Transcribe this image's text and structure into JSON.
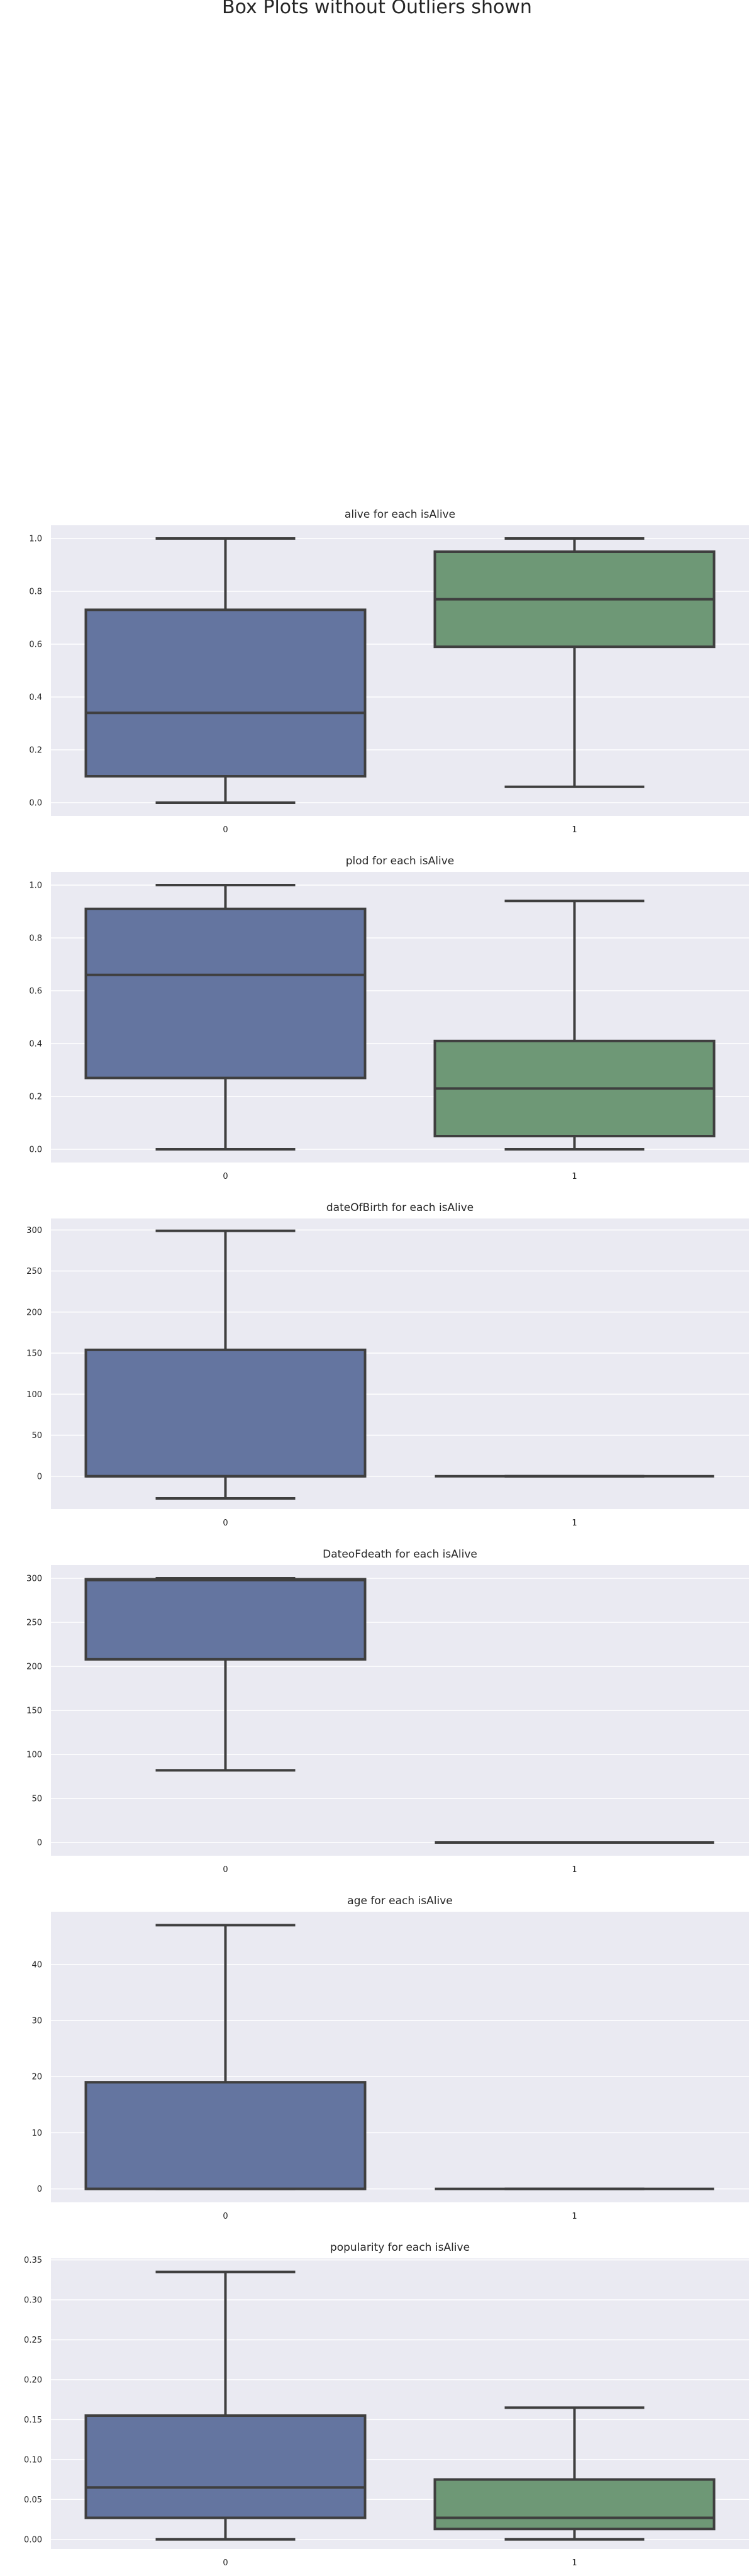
{
  "suptitle": "Box Plots without Outliers shown",
  "colors": {
    "group_0": "#6475a0",
    "group_1": "#6e9876",
    "line": "#3f3f3f",
    "plot_bg": "#eaeaf2",
    "grid": "#ffffff"
  },
  "chart_data": [
    {
      "type": "box",
      "title": "alive for each isAlive",
      "categories": [
        "0",
        "1"
      ],
      "ylim": [
        -0.05,
        1.05
      ],
      "yticks": [
        0.0,
        0.2,
        0.4,
        0.6,
        0.8,
        1.0
      ],
      "ytick_labels": [
        "0.0",
        "0.2",
        "0.4",
        "0.6",
        "0.8",
        "1.0"
      ],
      "boxes": [
        {
          "whisker_low": 0.0,
          "q1": 0.1,
          "median": 0.34,
          "q3": 0.73,
          "whisker_high": 1.0
        },
        {
          "whisker_low": 0.06,
          "q1": 0.59,
          "median": 0.77,
          "q3": 0.95,
          "whisker_high": 1.0
        }
      ]
    },
    {
      "type": "box",
      "title": "plod for each isAlive",
      "categories": [
        "0",
        "1"
      ],
      "ylim": [
        -0.05,
        1.05
      ],
      "yticks": [
        0.0,
        0.2,
        0.4,
        0.6,
        0.8,
        1.0
      ],
      "ytick_labels": [
        "0.0",
        "0.2",
        "0.4",
        "0.6",
        "0.8",
        "1.0"
      ],
      "boxes": [
        {
          "whisker_low": 0.0,
          "q1": 0.27,
          "median": 0.66,
          "q3": 0.91,
          "whisker_high": 1.0
        },
        {
          "whisker_low": 0.0,
          "q1": 0.05,
          "median": 0.23,
          "q3": 0.41,
          "whisker_high": 0.94
        }
      ]
    },
    {
      "type": "box",
      "title": "dateOfBirth for each isAlive",
      "categories": [
        "0",
        "1"
      ],
      "ylim": [
        -40,
        314
      ],
      "yticks": [
        0,
        50,
        100,
        150,
        200,
        250,
        300
      ],
      "ytick_labels": [
        "0",
        "50",
        "100",
        "150",
        "200",
        "250",
        "300"
      ],
      "boxes": [
        {
          "whisker_low": -27,
          "q1": 0,
          "median": 0,
          "q3": 154,
          "whisker_high": 299
        },
        {
          "whisker_low": 0,
          "q1": 0,
          "median": 0,
          "q3": 0,
          "whisker_high": 0
        }
      ]
    },
    {
      "type": "box",
      "title": "DateoFdeath for each isAlive",
      "categories": [
        "0",
        "1"
      ],
      "ylim": [
        -15,
        315
      ],
      "yticks": [
        0,
        50,
        100,
        150,
        200,
        250,
        300
      ],
      "ytick_labels": [
        "0",
        "50",
        "100",
        "150",
        "200",
        "250",
        "300"
      ],
      "boxes": [
        {
          "whisker_low": 82,
          "q1": 208,
          "median": 298,
          "q3": 299,
          "whisker_high": 300
        },
        {
          "whisker_low": 0,
          "q1": 0,
          "median": 0,
          "q3": 0,
          "whisker_high": 0
        }
      ]
    },
    {
      "type": "box",
      "title": "age for each isAlive",
      "categories": [
        "0",
        "1"
      ],
      "ylim": [
        -2.4,
        49.4
      ],
      "yticks": [
        0,
        10,
        20,
        30,
        40
      ],
      "ytick_labels": [
        "0",
        "10",
        "20",
        "30",
        "40"
      ],
      "boxes": [
        {
          "whisker_low": 0,
          "q1": 0,
          "median": 0,
          "q3": 19,
          "whisker_high": 47
        },
        {
          "whisker_low": 0,
          "q1": 0,
          "median": 0,
          "q3": 0,
          "whisker_high": 0
        }
      ]
    },
    {
      "type": "box",
      "title": "popularity for each isAlive",
      "categories": [
        "0",
        "1"
      ],
      "ylim": [
        -0.012,
        0.352
      ],
      "yticks": [
        0.0,
        0.05,
        0.1,
        0.15,
        0.2,
        0.25,
        0.3,
        0.35
      ],
      "ytick_labels": [
        "0.00",
        "0.05",
        "0.10",
        "0.15",
        "0.20",
        "0.25",
        "0.30",
        "0.35"
      ],
      "boxes": [
        {
          "whisker_low": 0.0,
          "q1": 0.027,
          "median": 0.065,
          "q3": 0.155,
          "whisker_high": 0.335
        },
        {
          "whisker_low": 0.0,
          "q1": 0.013,
          "median": 0.027,
          "q3": 0.075,
          "whisker_high": 0.165
        }
      ]
    }
  ]
}
